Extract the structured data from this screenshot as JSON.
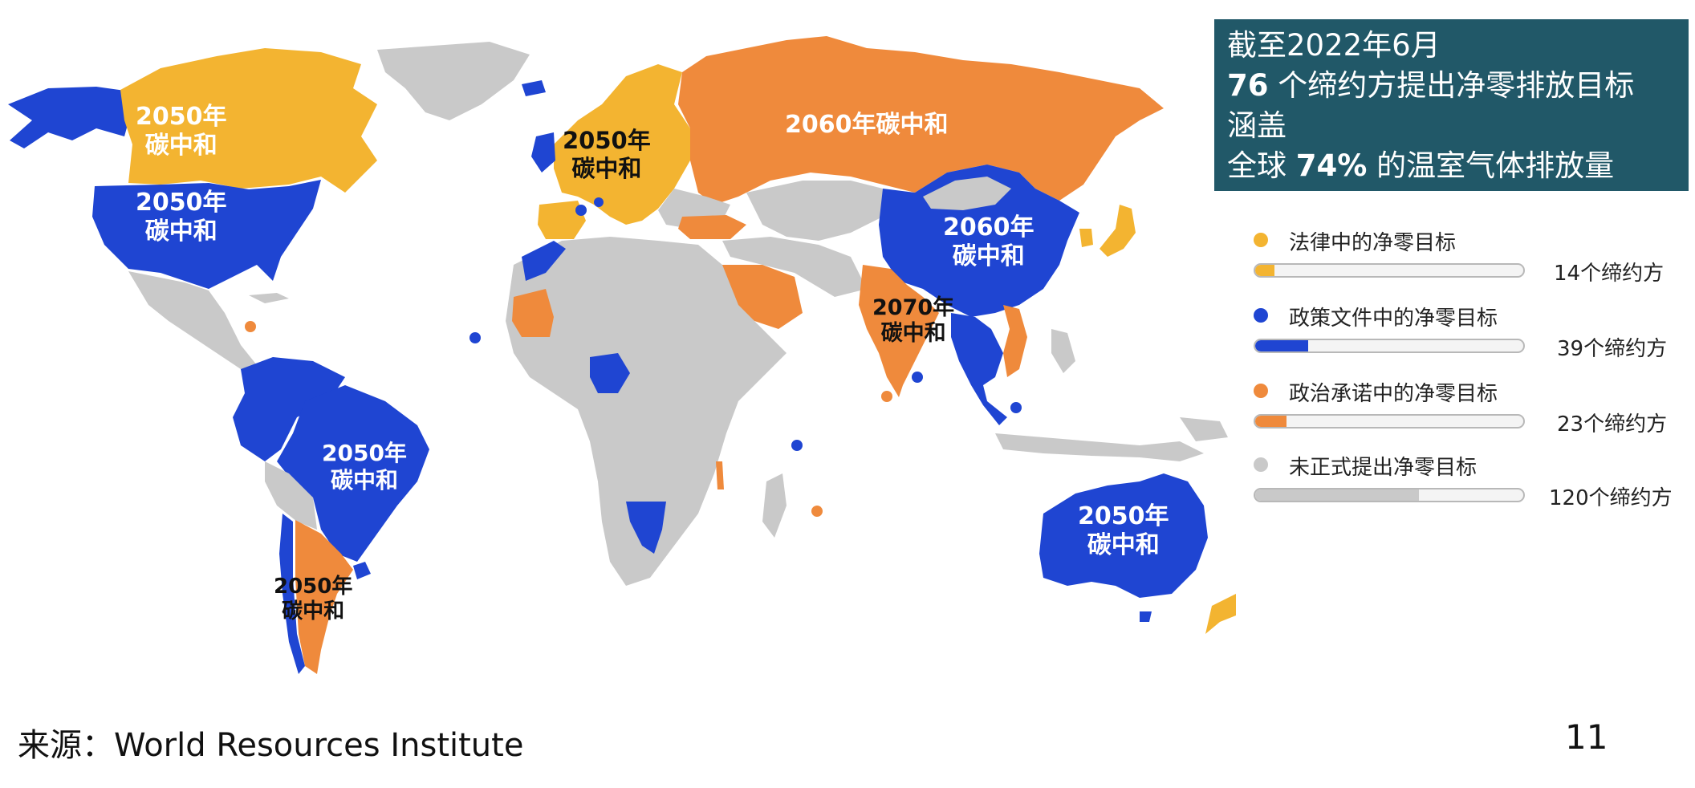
{
  "colors": {
    "legal": "#f3b431",
    "policy": "#1f45d2",
    "political": "#ef8a3c",
    "none": "#c9c9c9",
    "infobox_bg": "#215868"
  },
  "infobox": {
    "line1": "截至2022年6月",
    "line2_num": "76",
    "line2_text": " 个缔约方提出净零排放目标",
    "line3": "涵盖",
    "line4_pre": "全球 ",
    "line4_num": "74%",
    "line4_post": " 的温室气体排放量"
  },
  "legend": [
    {
      "key": "legal",
      "label": "法律中的净零目标",
      "count": "14个缔约方",
      "value": 14
    },
    {
      "key": "policy",
      "label": "政策文件中的净零目标",
      "count": "39个缔约方",
      "value": 39
    },
    {
      "key": "political",
      "label": "政治承诺中的净零目标",
      "count": "23个缔约方",
      "value": 23
    },
    {
      "key": "none",
      "label": "未正式提出净零目标",
      "count": "120个缔约方",
      "value": 120
    }
  ],
  "legend_max": 196,
  "map_labels": {
    "canada": [
      "2050年",
      "碳中和"
    ],
    "usa": [
      "2050年",
      "碳中和"
    ],
    "europe": [
      "2050年",
      "碳中和"
    ],
    "russia": [
      "2060年碳中和"
    ],
    "china": [
      "2060年",
      "碳中和"
    ],
    "india": [
      "2070年",
      "碳中和"
    ],
    "brazil": [
      "2050年",
      "碳中和"
    ],
    "argentina": [
      "2050年",
      "碳中和"
    ],
    "australia": [
      "2050年",
      "碳中和"
    ]
  },
  "source": "来源：World Resources Institute",
  "page_number": "11"
}
